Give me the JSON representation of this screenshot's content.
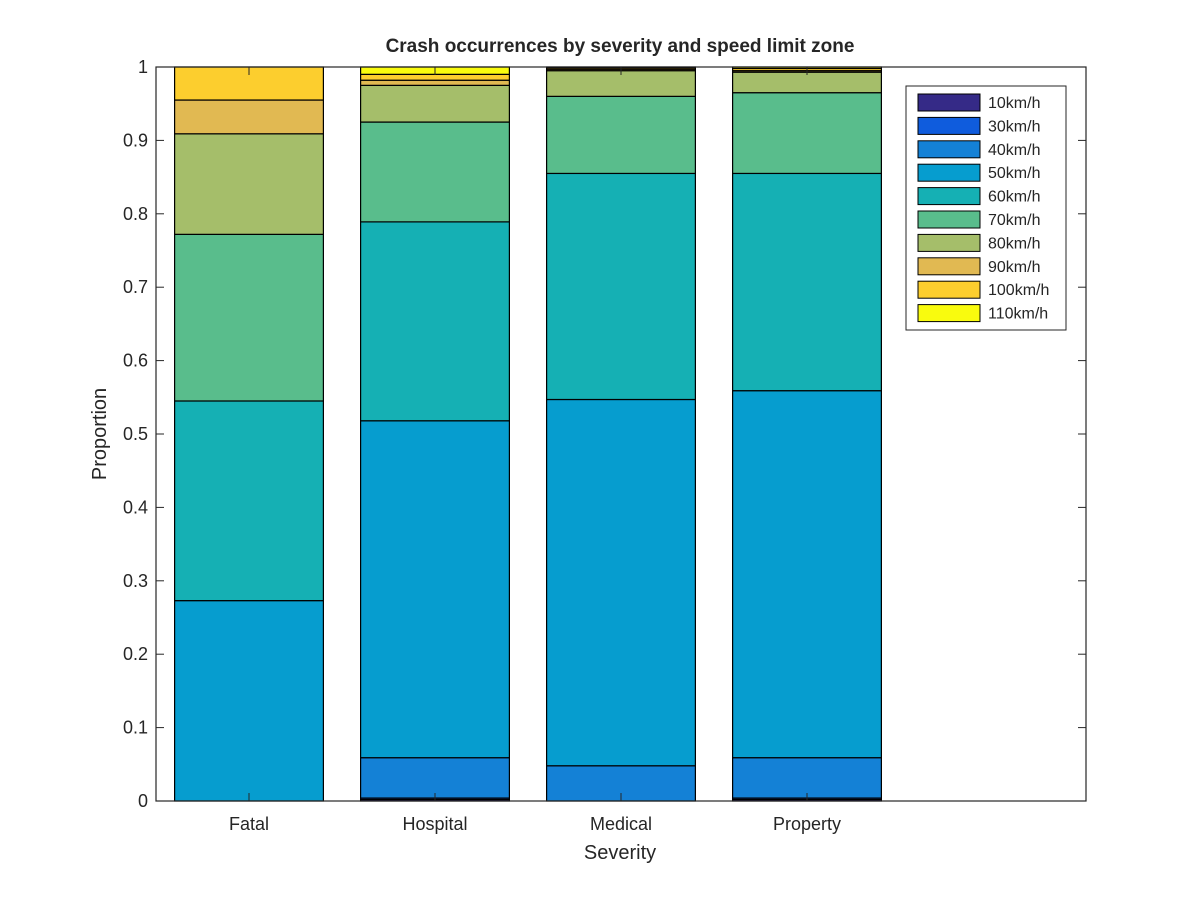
{
  "chart_data": {
    "type": "bar",
    "stacked": true,
    "title": "Crash occurrences by severity and speed limit zone",
    "xlabel": "Severity",
    "ylabel": "Proportion",
    "ylim": [
      0,
      1
    ],
    "yticks": [
      "0",
      "0.1",
      "0.2",
      "0.3",
      "0.4",
      "0.5",
      "0.6",
      "0.7",
      "0.8",
      "0.9",
      "1"
    ],
    "ytick_values": [
      0,
      0.1,
      0.2,
      0.3,
      0.4,
      0.5,
      0.6,
      0.7,
      0.8,
      0.9,
      1.0
    ],
    "x_slots": 5,
    "legend_position": "top-right",
    "grid": false,
    "categories": [
      "Fatal",
      "Hospital",
      "Medical",
      "Property"
    ],
    "series": [
      {
        "name": "10km/h",
        "color": "#352a87",
        "values": [
          0.0,
          0.002,
          0.0,
          0.002
        ]
      },
      {
        "name": "30km/h",
        "color": "#0f5cdd",
        "values": [
          0.0,
          0.002,
          0.0,
          0.002
        ]
      },
      {
        "name": "40km/h",
        "color": "#1481d6",
        "values": [
          0.0,
          0.055,
          0.048,
          0.055
        ]
      },
      {
        "name": "50km/h",
        "color": "#069dcf",
        "values": [
          0.273,
          0.459,
          0.499,
          0.5
        ]
      },
      {
        "name": "60km/h",
        "color": "#15b0b4",
        "values": [
          0.272,
          0.271,
          0.308,
          0.296
        ]
      },
      {
        "name": "70km/h",
        "color": "#59bd8c",
        "values": [
          0.227,
          0.136,
          0.105,
          0.11
        ]
      },
      {
        "name": "80km/h",
        "color": "#a5be6a",
        "values": [
          0.137,
          0.05,
          0.035,
          0.028
        ]
      },
      {
        "name": "90km/h",
        "color": "#e1b952",
        "values": [
          0.046,
          0.007,
          0.002,
          0.002
        ]
      },
      {
        "name": "100km/h",
        "color": "#fcce2e",
        "values": [
          0.045,
          0.008,
          0.002,
          0.003
        ]
      },
      {
        "name": "110km/h",
        "color": "#f9fb0e",
        "values": [
          0.0,
          0.01,
          0.001,
          0.002
        ]
      }
    ]
  }
}
